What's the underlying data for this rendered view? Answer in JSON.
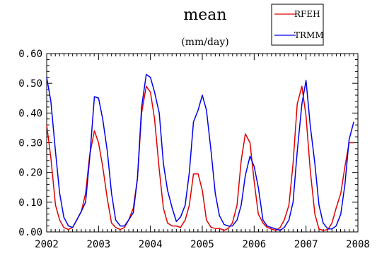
{
  "chart_data": {
    "type": "line",
    "title": "mean",
    "subtitle": "(mm/day)",
    "xlabel": "",
    "ylabel": "",
    "xlim": [
      2002,
      2008
    ],
    "ylim": [
      0,
      0.6
    ],
    "xticks": [
      "2002",
      "2003",
      "2004",
      "2005",
      "2006",
      "2007",
      "2008"
    ],
    "yticks": [
      "0.00",
      "0.10",
      "0.20",
      "0.30",
      "0.40",
      "0.50",
      "0.60"
    ],
    "legend_position": "top-right",
    "grid": false,
    "series": [
      {
        "name": "RFEH",
        "color": "#e00000",
        "x": [
          2002.0,
          2002.08,
          2002.17,
          2002.25,
          2002.33,
          2002.42,
          2002.5,
          2002.58,
          2002.67,
          2002.75,
          2002.83,
          2002.92,
          2003.0,
          2003.08,
          2003.17,
          2003.25,
          2003.33,
          2003.42,
          2003.5,
          2003.58,
          2003.67,
          2003.75,
          2003.83,
          2003.92,
          2004.0,
          2004.08,
          2004.17,
          2004.25,
          2004.33,
          2004.42,
          2004.5,
          2004.58,
          2004.67,
          2004.75,
          2004.83,
          2004.92,
          2005.0,
          2005.08,
          2005.17,
          2005.25,
          2005.33,
          2005.42,
          2005.5,
          2005.58,
          2005.67,
          2005.75,
          2005.83,
          2005.92,
          2006.0,
          2006.08,
          2006.17,
          2006.25,
          2006.33,
          2006.42,
          2006.5,
          2006.58,
          2006.67,
          2006.75,
          2006.83,
          2006.92,
          2007.0,
          2007.08,
          2007.17,
          2007.25,
          2007.33,
          2007.42,
          2007.5,
          2007.58,
          2007.67,
          2007.75,
          2007.83,
          2007.92
        ],
        "values": [
          0.36,
          0.25,
          0.09,
          0.04,
          0.015,
          0.008,
          0.015,
          0.04,
          0.07,
          0.13,
          0.26,
          0.34,
          0.3,
          0.22,
          0.11,
          0.03,
          0.015,
          0.008,
          0.015,
          0.04,
          0.08,
          0.18,
          0.4,
          0.49,
          0.47,
          0.38,
          0.21,
          0.08,
          0.03,
          0.02,
          0.02,
          0.015,
          0.04,
          0.09,
          0.195,
          0.195,
          0.14,
          0.04,
          0.015,
          0.012,
          0.012,
          0.005,
          0.012,
          0.03,
          0.09,
          0.24,
          0.33,
          0.3,
          0.17,
          0.06,
          0.03,
          0.015,
          0.01,
          0.005,
          0.015,
          0.04,
          0.09,
          0.23,
          0.43,
          0.49,
          0.39,
          0.21,
          0.06,
          0.01,
          0.005,
          0.008,
          0.03,
          0.08,
          0.13,
          0.22,
          0.3,
          0.3
        ]
      },
      {
        "name": "TRMM",
        "color": "#0000ee",
        "x": [
          2002.0,
          2002.08,
          2002.17,
          2002.25,
          2002.33,
          2002.42,
          2002.5,
          2002.58,
          2002.67,
          2002.75,
          2002.83,
          2002.92,
          2003.0,
          2003.08,
          2003.17,
          2003.25,
          2003.33,
          2003.42,
          2003.5,
          2003.58,
          2003.67,
          2003.75,
          2003.83,
          2003.92,
          2004.0,
          2004.08,
          2004.17,
          2004.25,
          2004.33,
          2004.42,
          2004.5,
          2004.58,
          2004.67,
          2004.75,
          2004.83,
          2004.92,
          2005.0,
          2005.08,
          2005.17,
          2005.25,
          2005.33,
          2005.42,
          2005.5,
          2005.58,
          2005.67,
          2005.75,
          2005.83,
          2005.92,
          2006.0,
          2006.08,
          2006.17,
          2006.25,
          2006.33,
          2006.42,
          2006.5,
          2006.58,
          2006.67,
          2006.75,
          2006.83,
          2006.92,
          2007.0,
          2007.08,
          2007.17,
          2007.25,
          2007.33,
          2007.42,
          2007.5,
          2007.58,
          2007.67,
          2007.75,
          2007.83,
          2007.92
        ],
        "values": [
          0.52,
          0.44,
          0.27,
          0.13,
          0.05,
          0.02,
          0.015,
          0.04,
          0.07,
          0.1,
          0.25,
          0.455,
          0.45,
          0.38,
          0.27,
          0.13,
          0.04,
          0.02,
          0.02,
          0.04,
          0.065,
          0.18,
          0.42,
          0.53,
          0.52,
          0.47,
          0.4,
          0.23,
          0.14,
          0.08,
          0.035,
          0.05,
          0.09,
          0.2,
          0.37,
          0.41,
          0.46,
          0.41,
          0.27,
          0.13,
          0.055,
          0.025,
          0.02,
          0.02,
          0.04,
          0.09,
          0.19,
          0.255,
          0.22,
          0.15,
          0.04,
          0.02,
          0.015,
          0.01,
          0.005,
          0.015,
          0.04,
          0.1,
          0.27,
          0.43,
          0.51,
          0.36,
          0.23,
          0.09,
          0.03,
          0.01,
          0.01,
          0.02,
          0.06,
          0.16,
          0.31,
          0.37
        ]
      }
    ]
  }
}
